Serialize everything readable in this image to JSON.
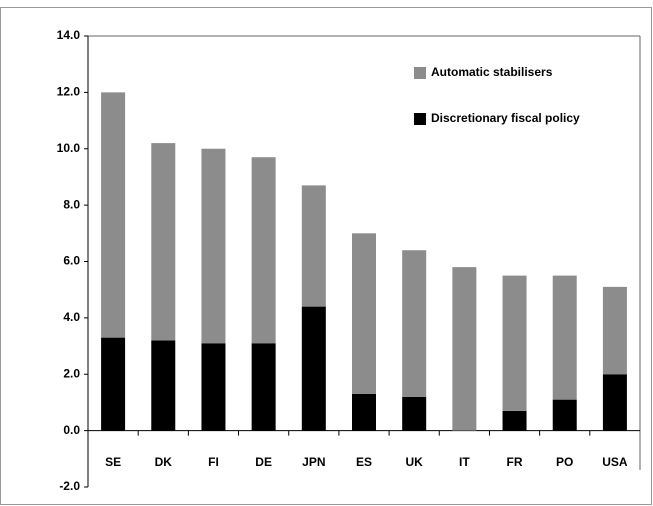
{
  "chart_data": {
    "type": "stacked-bar",
    "categories": [
      "SE",
      "DK",
      "FI",
      "DE",
      "JPN",
      "ES",
      "UK",
      "IT",
      "FR",
      "PO",
      "USA"
    ],
    "series": [
      {
        "name": "Automatic stabilisers",
        "color": "#8c8c8c",
        "values": [
          8.7,
          7.0,
          6.9,
          6.6,
          4.3,
          5.7,
          5.2,
          5.8,
          4.8,
          4.4,
          3.1
        ]
      },
      {
        "name": "Discretionary fiscal policy",
        "color": "#000000",
        "values": [
          3.3,
          3.2,
          3.1,
          3.1,
          4.4,
          1.3,
          1.2,
          0,
          0.7,
          1.1,
          2.0
        ]
      }
    ],
    "ylim": [
      -2,
      14
    ],
    "yticks": [
      {
        "value": -2,
        "label": "-2.0"
      },
      {
        "value": 0,
        "label": "0.0"
      },
      {
        "value": 2,
        "label": "2.0"
      },
      {
        "value": 4,
        "label": "4.0"
      },
      {
        "value": 6,
        "label": "6.0"
      },
      {
        "value": 8,
        "label": "8.0"
      },
      {
        "value": 10,
        "label": "10.0"
      },
      {
        "value": 12,
        "label": "12.0"
      },
      {
        "value": 14,
        "label": "14.0"
      }
    ],
    "legend": "upper-right"
  }
}
